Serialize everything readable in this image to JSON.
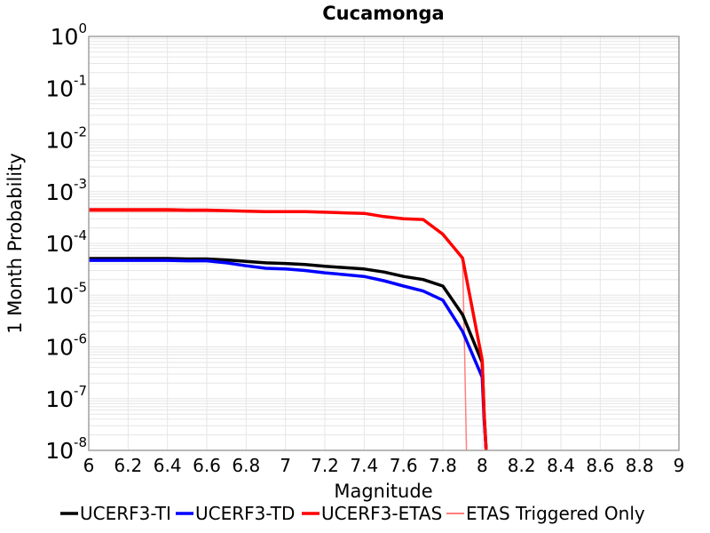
{
  "chart_data": {
    "type": "line",
    "title": "Cucamonga",
    "xlabel": "Magnitude",
    "ylabel": "1 Month Probability",
    "xlim": [
      6,
      9
    ],
    "ylim": [
      1e-08,
      1
    ],
    "yscale": "log",
    "grid": true,
    "legend_position": "bottom",
    "x_ticks": [
      "6",
      "6.2",
      "6.4",
      "6.6",
      "6.8",
      "7",
      "7.2",
      "7.4",
      "7.6",
      "7.8",
      "8",
      "8.2",
      "8.4",
      "8.6",
      "8.8",
      "9"
    ],
    "y_ticks": [
      {
        "base": "10",
        "exp": "0"
      },
      {
        "base": "10",
        "exp": "-1"
      },
      {
        "base": "10",
        "exp": "-2"
      },
      {
        "base": "10",
        "exp": "-3"
      },
      {
        "base": "10",
        "exp": "-4"
      },
      {
        "base": "10",
        "exp": "-5"
      },
      {
        "base": "10",
        "exp": "-6"
      },
      {
        "base": "10",
        "exp": "-7"
      },
      {
        "base": "10",
        "exp": "-8"
      }
    ],
    "series": [
      {
        "name": "UCERF3-TI",
        "color": "#000000",
        "x": [
          6.0,
          6.1,
          6.2,
          6.3,
          6.4,
          6.5,
          6.6,
          6.7,
          6.8,
          6.9,
          7.0,
          7.1,
          7.2,
          7.3,
          7.4,
          7.5,
          7.6,
          7.7,
          7.8,
          7.9,
          8.0,
          8.01,
          8.02
        ],
        "y": [
          5.1e-05,
          5.1e-05,
          5.1e-05,
          5.1e-05,
          5.1e-05,
          5e-05,
          5e-05,
          4.8e-05,
          4.5e-05,
          4.2e-05,
          4.1e-05,
          3.9e-05,
          3.6e-05,
          3.4e-05,
          3.2e-05,
          2.8e-05,
          2.3e-05,
          2e-05,
          1.5e-05,
          4.2e-06,
          5e-07,
          5e-08,
          1e-08
        ]
      },
      {
        "name": "UCERF3-TD",
        "color": "#0000ff",
        "x": [
          6.0,
          6.1,
          6.2,
          6.3,
          6.4,
          6.5,
          6.6,
          6.7,
          6.8,
          6.9,
          7.0,
          7.1,
          7.2,
          7.3,
          7.4,
          7.5,
          7.6,
          7.7,
          7.8,
          7.9,
          8.0,
          8.01,
          8.02
        ],
        "y": [
          4.7e-05,
          4.7e-05,
          4.7e-05,
          4.7e-05,
          4.7e-05,
          4.6e-05,
          4.6e-05,
          4.2e-05,
          3.7e-05,
          3.3e-05,
          3.2e-05,
          3e-05,
          2.7e-05,
          2.5e-05,
          2.3e-05,
          1.9e-05,
          1.5e-05,
          1.2e-05,
          8e-06,
          2e-06,
          2.6e-07,
          4e-08,
          1e-08
        ]
      },
      {
        "name": "UCERF3-ETAS",
        "color": "#ff0000",
        "x": [
          6.0,
          6.1,
          6.2,
          6.3,
          6.4,
          6.5,
          6.6,
          6.7,
          6.8,
          6.9,
          7.0,
          7.1,
          7.2,
          7.3,
          7.4,
          7.5,
          7.6,
          7.7,
          7.8,
          7.9,
          8.0,
          8.01,
          8.02
        ],
        "y": [
          0.00045,
          0.00045,
          0.00045,
          0.00045,
          0.00045,
          0.00044,
          0.00044,
          0.00043,
          0.00042,
          0.00041,
          0.00041,
          0.00041,
          0.0004,
          0.00039,
          0.00038,
          0.00033,
          0.0003,
          0.00029,
          0.00015,
          5.2e-05,
          5.6e-07,
          5e-08,
          1e-08
        ]
      },
      {
        "name": "ETAS Triggered Only",
        "color": "#ff7f7f",
        "x": [
          6.0,
          6.1,
          6.2,
          6.3,
          6.4,
          6.5,
          6.6,
          6.7,
          6.8,
          6.9,
          7.0,
          7.1,
          7.2,
          7.3,
          7.4,
          7.5,
          7.6,
          7.7,
          7.8,
          7.9,
          7.91,
          7.92
        ],
        "y": [
          0.00041,
          0.00041,
          0.00041,
          0.00041,
          0.00041,
          0.00041,
          0.00041,
          0.00041,
          0.00041,
          0.00041,
          0.0004,
          0.0004,
          0.00039,
          0.00038,
          0.00037,
          0.00033,
          0.0003,
          0.00029,
          0.00015,
          5e-05,
          1e-06,
          1e-08
        ]
      }
    ]
  }
}
